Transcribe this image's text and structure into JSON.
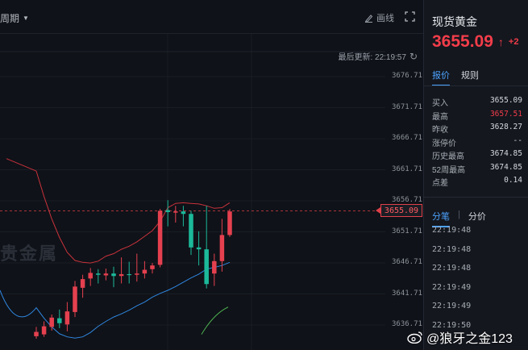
{
  "toolbar": {
    "period_label": "周期",
    "draw_label": "画线"
  },
  "chart_header": {
    "update_label": "最后更新: 22:19:57"
  },
  "watermark": "贵金属",
  "chart_data": {
    "type": "candlestick",
    "current_price": 3655.09,
    "ylim": [
      3634.71,
      3678.71
    ],
    "y_ticks": [
      "3676.71",
      "3671.71",
      "3666.71",
      "3661.71",
      "3656.71",
      "3651.71",
      "3646.71",
      "3641.71",
      "3636.71"
    ],
    "price_tag": "3655.09",
    "candles": [
      {
        "o": 3634.9,
        "c": 3635.6,
        "h": 3636.4,
        "l": 3634.5,
        "up": true
      },
      {
        "o": 3635.2,
        "c": 3636.5,
        "h": 3637.3,
        "l": 3634.8,
        "up": true
      },
      {
        "o": 3636.4,
        "c": 3637.9,
        "h": 3638.4,
        "l": 3635.8,
        "up": true
      },
      {
        "o": 3637.8,
        "c": 3637.0,
        "h": 3639.2,
        "l": 3636.2,
        "up": false
      },
      {
        "o": 3636.8,
        "c": 3638.9,
        "h": 3640.4,
        "l": 3635.7,
        "up": true
      },
      {
        "o": 3638.8,
        "c": 3642.9,
        "h": 3643.8,
        "l": 3638.0,
        "up": true
      },
      {
        "o": 3642.7,
        "c": 3644.1,
        "h": 3644.8,
        "l": 3641.1,
        "up": true
      },
      {
        "o": 3644.2,
        "c": 3645.1,
        "h": 3645.9,
        "l": 3643.0,
        "up": true
      },
      {
        "o": 3645.0,
        "c": 3644.8,
        "h": 3645.7,
        "l": 3643.4,
        "up": false
      },
      {
        "o": 3644.7,
        "c": 3645.0,
        "h": 3645.8,
        "l": 3643.9,
        "up": true
      },
      {
        "o": 3645.0,
        "c": 3644.6,
        "h": 3646.1,
        "l": 3642.8,
        "up": false
      },
      {
        "o": 3644.6,
        "c": 3644.9,
        "h": 3647.6,
        "l": 3643.4,
        "up": true
      },
      {
        "o": 3644.9,
        "c": 3644.8,
        "h": 3646.9,
        "l": 3643.4,
        "up": false
      },
      {
        "o": 3644.8,
        "c": 3645.0,
        "h": 3648.2,
        "l": 3643.7,
        "up": true
      },
      {
        "o": 3645.0,
        "c": 3645.6,
        "h": 3647.0,
        "l": 3644.2,
        "up": true
      },
      {
        "o": 3645.7,
        "c": 3646.3,
        "h": 3646.7,
        "l": 3645.0,
        "up": true
      },
      {
        "o": 3646.4,
        "c": 3655.1,
        "h": 3655.4,
        "l": 3646.0,
        "up": true
      },
      {
        "o": 3655.2,
        "c": 3654.9,
        "h": 3656.8,
        "l": 3652.6,
        "up": false
      },
      {
        "o": 3654.8,
        "c": 3655.0,
        "h": 3655.9,
        "l": 3653.2,
        "up": true
      },
      {
        "o": 3655.0,
        "c": 3654.6,
        "h": 3655.9,
        "l": 3652.6,
        "up": false
      },
      {
        "o": 3654.6,
        "c": 3649.2,
        "h": 3655.1,
        "l": 3648.0,
        "up": false
      },
      {
        "o": 3649.2,
        "c": 3648.9,
        "h": 3651.8,
        "l": 3646.3,
        "up": false
      },
      {
        "o": 3648.9,
        "c": 3643.3,
        "h": 3655.9,
        "l": 3642.6,
        "up": false
      },
      {
        "o": 3645.0,
        "c": 3647.0,
        "h": 3648.2,
        "l": 3643.0,
        "up": true
      },
      {
        "o": 3647.0,
        "c": 3651.2,
        "h": 3653.8,
        "l": 3645.3,
        "up": true
      },
      {
        "o": 3651.2,
        "c": 3655.0,
        "h": 3655.4,
        "l": 3650.9,
        "up": true
      }
    ],
    "boll_upper": [
      3661.5,
      3657.4,
      3653.8,
      3650.8,
      3648.4,
      3647.1,
      3646.8,
      3646.7,
      3647.0,
      3647.8,
      3648.2,
      3648.9,
      3649.4,
      3650.1,
      3651.0,
      3651.9,
      3653.4,
      3655.6,
      3656.3,
      3656.4,
      3656.3,
      3656.2,
      3655.9,
      3655.5,
      3655.6,
      3656.4
    ],
    "boll_lower": [
      3639.5,
      3637.8,
      3636.4,
      3635.3,
      3634.8,
      3634.6,
      3634.8,
      3635.5,
      3636.5,
      3637.3,
      3638.0,
      3638.5,
      3639.1,
      3639.8,
      3640.4,
      3641.2,
      3641.8,
      3642.3,
      3642.9,
      3643.6,
      3644.3,
      3644.9,
      3645.7,
      3646.0,
      3646.3,
      3646.8
    ]
  },
  "panel": {
    "title": "现货黄金",
    "price": "3655.09",
    "change": "+2",
    "tab_quote": "报价",
    "tab_rules": "规则",
    "quotes": [
      {
        "k": "买入",
        "v": "3655.09",
        "red": false
      },
      {
        "k": "最高",
        "v": "3657.51",
        "red": true
      },
      {
        "k": "昨收",
        "v": "3628.27",
        "red": false
      },
      {
        "k": "涨停价",
        "v": "--",
        "red": false
      },
      {
        "k": "历史最高",
        "v": "3674.85",
        "red": false
      },
      {
        "k": "52周最高",
        "v": "3674.85",
        "red": false
      },
      {
        "k": "点差",
        "v": "0.14",
        "red": false
      }
    ],
    "tab_ticks": "分笔",
    "tab_minute": "分价",
    "ticks": [
      "22:19:48",
      "22:19:48",
      "22:19:48",
      "22:19:49",
      "22:19:49",
      "22:19:50"
    ]
  },
  "weibo": "@狼牙之金123",
  "colors": {
    "up": "#e5404f",
    "down": "#1cb99a",
    "boll_upper": "#c9323c",
    "boll_lower": "#2f86e0",
    "boll_extra": "#4caf50",
    "price_line": "#e0404a"
  }
}
